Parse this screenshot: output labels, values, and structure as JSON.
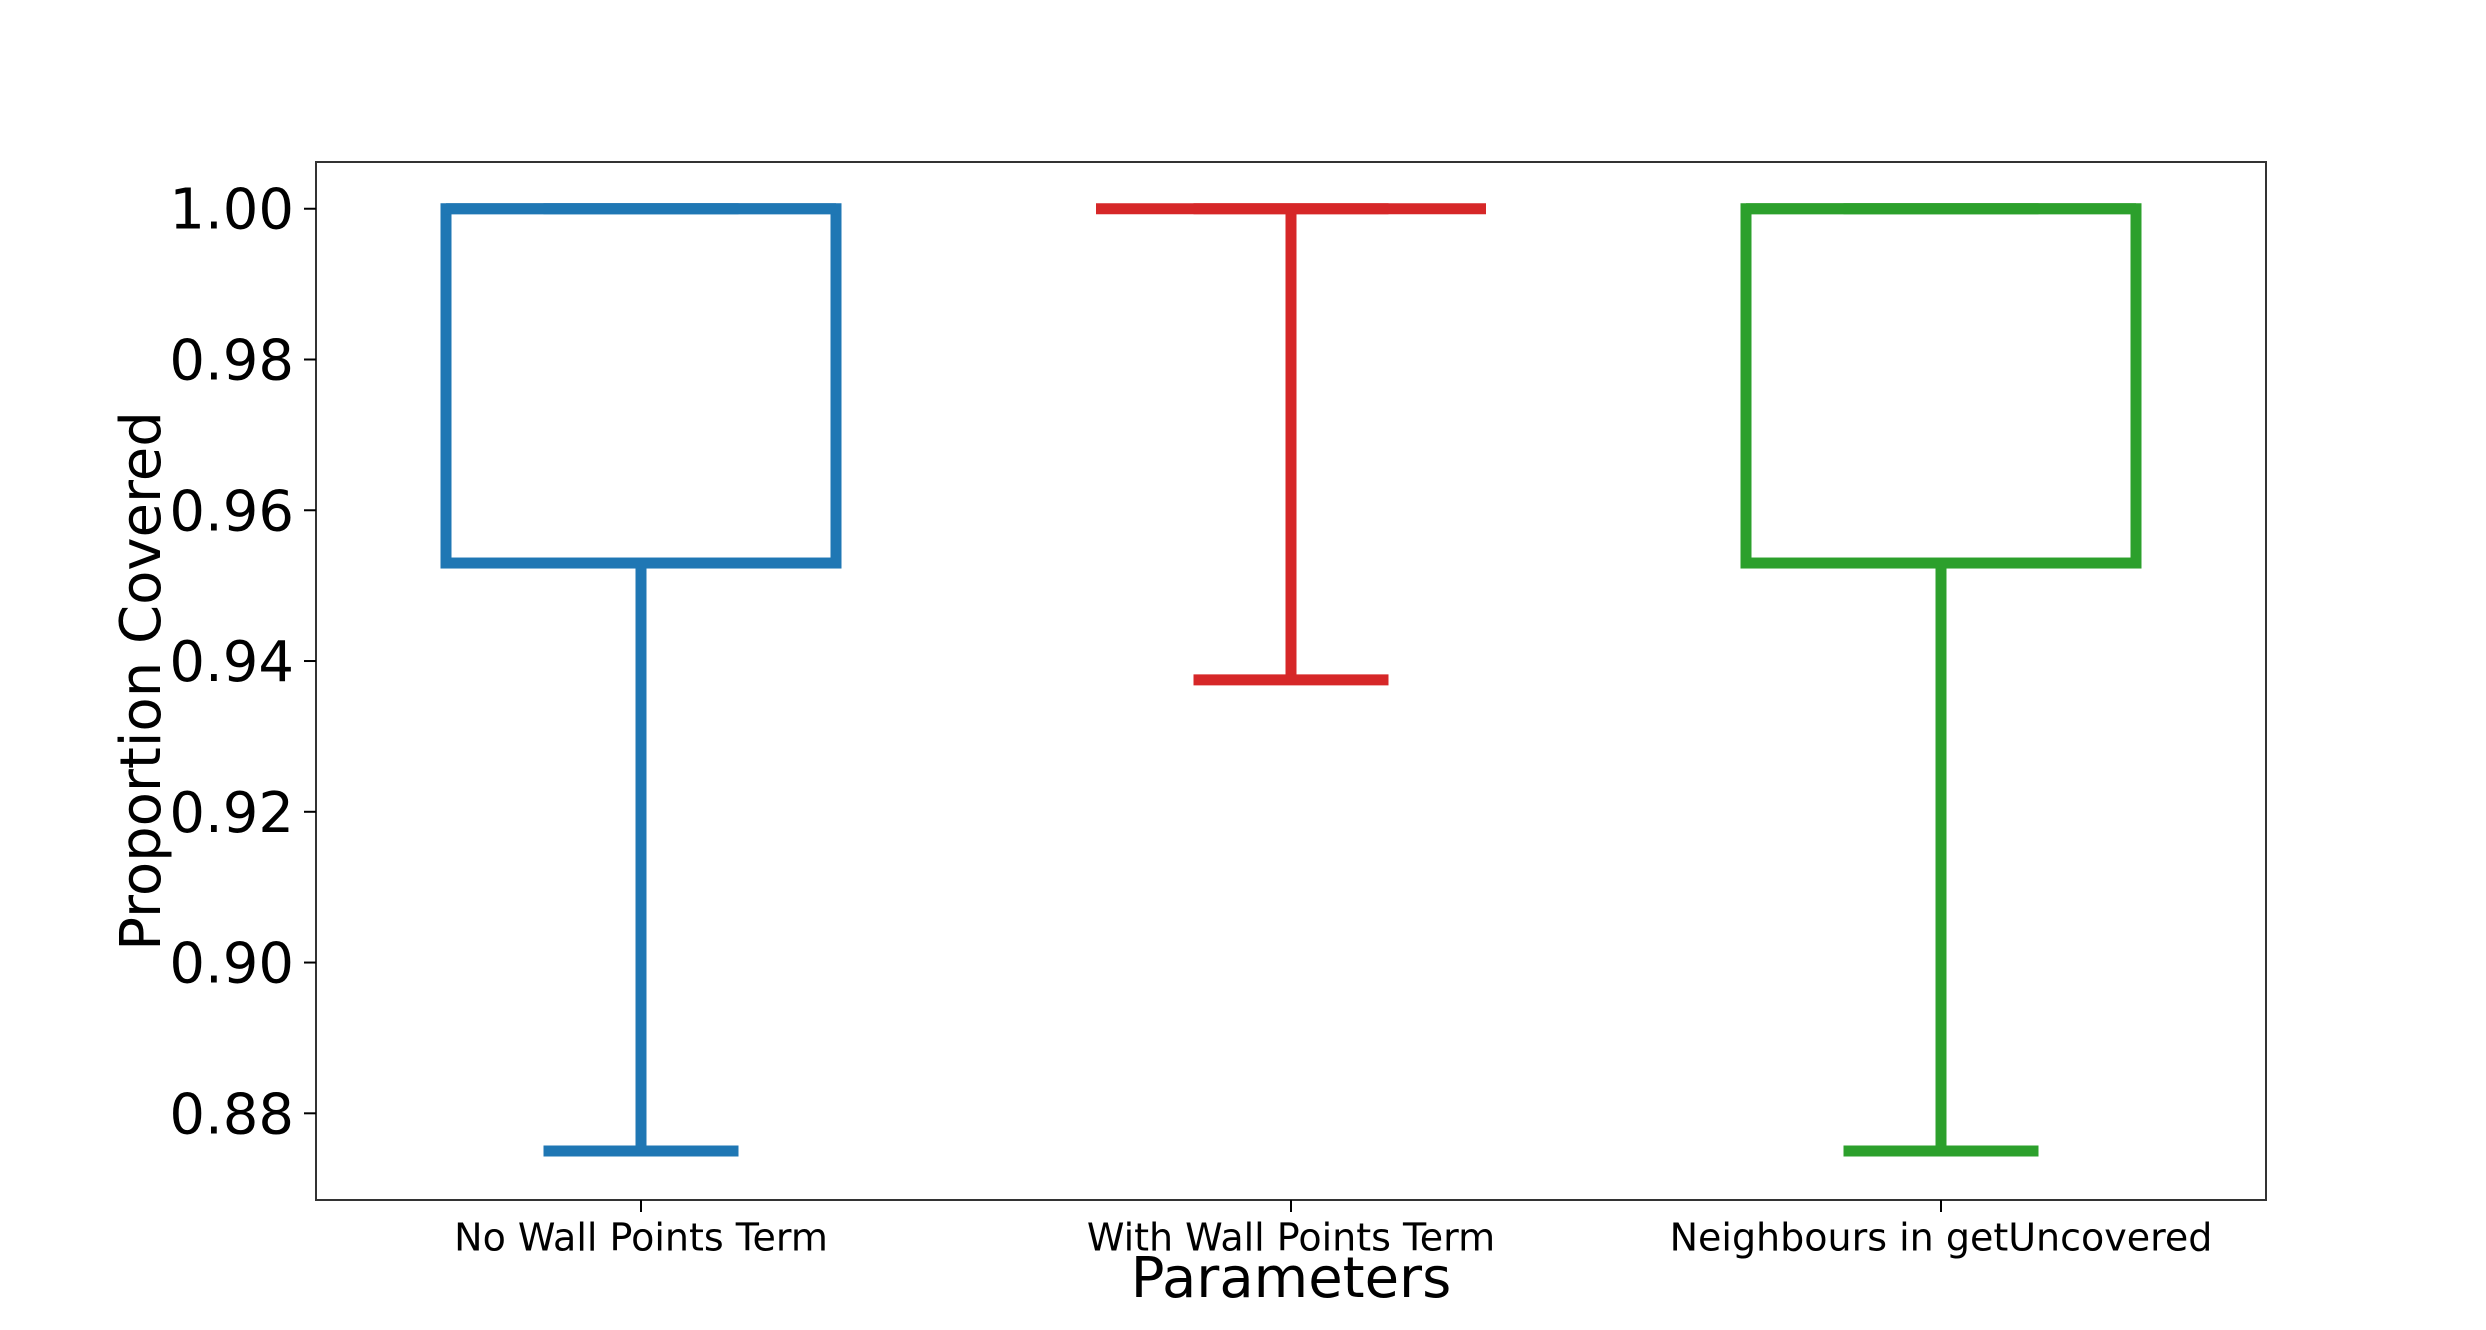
{
  "chart_data": {
    "type": "box",
    "title": "",
    "xlabel": "Parameters",
    "ylabel": "Proportion Covered",
    "ylim": [
      0.8685,
      1.0062
    ],
    "yticks": [
      "0.88",
      "0.90",
      "0.92",
      "0.94",
      "0.96",
      "0.98",
      "1.00"
    ],
    "grid": false,
    "categories": [
      "No Wall Points Term",
      "With Wall Points Term",
      "Neighbours in getUncovered"
    ],
    "boxes": [
      {
        "category": "No Wall Points Term",
        "color": "#1f77b4",
        "whisker_low": 0.875,
        "q1": 0.953,
        "median": 1.0,
        "q3": 1.0,
        "whisker_high": 1.0
      },
      {
        "category": "With Wall Points Term",
        "color": "#d62728",
        "whisker_low": 0.9375,
        "q1": 1.0,
        "median": 1.0,
        "q3": 1.0,
        "whisker_high": 1.0
      },
      {
        "category": "Neighbours in getUncovered",
        "color": "#2ca02c",
        "whisker_low": 0.875,
        "q1": 0.953,
        "median": 1.0,
        "q3": 1.0,
        "whisker_high": 1.0
      }
    ]
  }
}
